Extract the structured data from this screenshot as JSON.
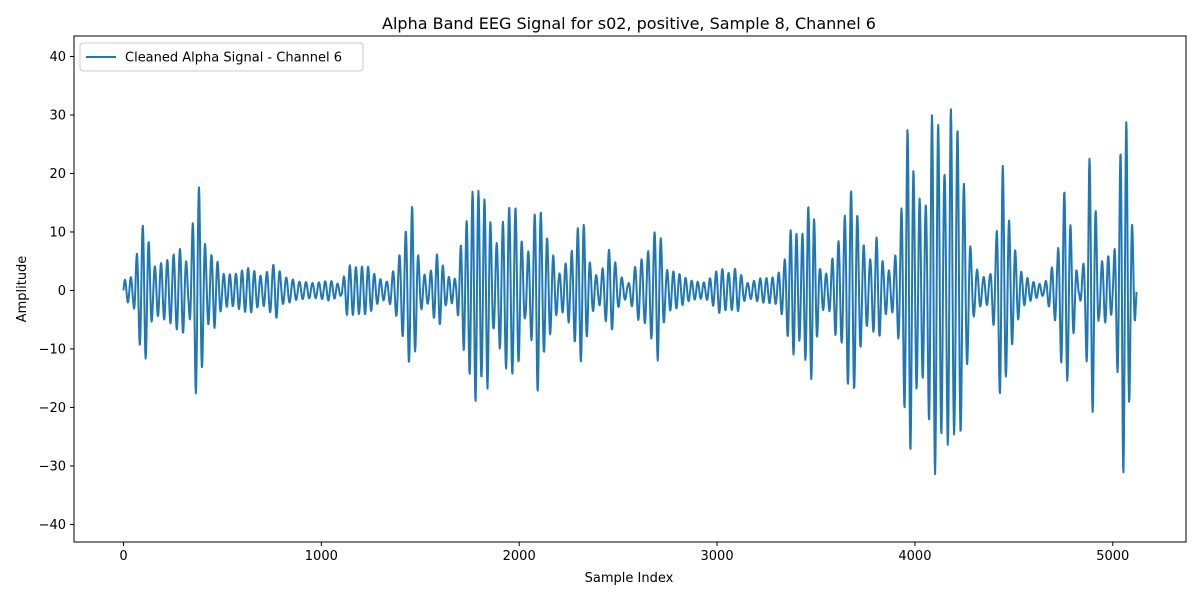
{
  "chart_data": {
    "type": "line",
    "title": "Alpha Band EEG Signal for s02, positive, Sample 8, Channel 6",
    "xlabel": "Sample Index",
    "ylabel": "Amplitude",
    "xlim": [
      -250,
      5370
    ],
    "ylim": [
      -43,
      43.5
    ],
    "xticks": [
      0,
      1000,
      2000,
      3000,
      4000,
      5000
    ],
    "yticks": [
      -40,
      -30,
      -20,
      -10,
      0,
      10,
      20,
      30,
      40
    ],
    "grid": false,
    "legend_position": "top-left",
    "colors": {
      "series": "#1f77b4"
    },
    "series": [
      {
        "name": "Cleaned Alpha Signal - Channel 6",
        "envelope": [
          [
            0,
            2
          ],
          [
            50,
            2.5
          ],
          [
            85,
            10
          ],
          [
            110,
            13
          ],
          [
            150,
            5
          ],
          [
            200,
            7
          ],
          [
            260,
            8
          ],
          [
            300,
            8
          ],
          [
            330,
            3
          ],
          [
            365,
            18
          ],
          [
            385,
            19
          ],
          [
            420,
            7
          ],
          [
            460,
            9
          ],
          [
            500,
            4
          ],
          [
            560,
            3
          ],
          [
            640,
            4
          ],
          [
            700,
            3
          ],
          [
            770,
            7
          ],
          [
            800,
            3
          ],
          [
            880,
            1.5
          ],
          [
            960,
            1.5
          ],
          [
            1040,
            2.5
          ],
          [
            1100,
            1
          ],
          [
            1130,
            4.5
          ],
          [
            1180,
            4
          ],
          [
            1240,
            5
          ],
          [
            1290,
            3
          ],
          [
            1330,
            2
          ],
          [
            1380,
            5
          ],
          [
            1410,
            8
          ],
          [
            1440,
            12
          ],
          [
            1460,
            15
          ],
          [
            1500,
            4
          ],
          [
            1540,
            3
          ],
          [
            1590,
            9.5
          ],
          [
            1630,
            3
          ],
          [
            1680,
            2
          ],
          [
            1710,
            9
          ],
          [
            1740,
            13
          ],
          [
            1780,
            23
          ],
          [
            1810,
            20
          ],
          [
            1840,
            24
          ],
          [
            1870,
            9
          ],
          [
            1910,
            13
          ],
          [
            1940,
            15
          ],
          [
            1990,
            14
          ],
          [
            2030,
            5
          ],
          [
            2070,
            12
          ],
          [
            2090,
            25
          ],
          [
            2120,
            16
          ],
          [
            2150,
            11
          ],
          [
            2200,
            3
          ],
          [
            2260,
            6
          ],
          [
            2320,
            15
          ],
          [
            2360,
            6
          ],
          [
            2400,
            3
          ],
          [
            2460,
            9
          ],
          [
            2500,
            3
          ],
          [
            2550,
            1
          ],
          [
            2600,
            6
          ],
          [
            2640,
            8
          ],
          [
            2700,
            16
          ],
          [
            2740,
            4
          ],
          [
            2800,
            3
          ],
          [
            2860,
            2
          ],
          [
            2940,
            2
          ],
          [
            3010,
            4.5
          ],
          [
            3060,
            3
          ],
          [
            3100,
            4
          ],
          [
            3150,
            1.5
          ],
          [
            3220,
            3
          ],
          [
            3300,
            2.5
          ],
          [
            3340,
            5
          ],
          [
            3380,
            12
          ],
          [
            3420,
            10
          ],
          [
            3440,
            14
          ],
          [
            3460,
            20
          ],
          [
            3480,
            22
          ],
          [
            3520,
            5
          ],
          [
            3560,
            3
          ],
          [
            3600,
            8
          ],
          [
            3630,
            9
          ],
          [
            3660,
            17
          ],
          [
            3690,
            21
          ],
          [
            3720,
            14
          ],
          [
            3770,
            7
          ],
          [
            3810,
            12
          ],
          [
            3840,
            5
          ],
          [
            3880,
            3
          ],
          [
            3920,
            9
          ],
          [
            3950,
            24
          ],
          [
            3970,
            38
          ],
          [
            4000,
            24
          ],
          [
            4060,
            20
          ],
          [
            4080,
            37
          ],
          [
            4100,
            37
          ],
          [
            4150,
            20
          ],
          [
            4180,
            32
          ],
          [
            4200,
            25
          ],
          [
            4220,
            32
          ],
          [
            4250,
            22
          ],
          [
            4290,
            7
          ],
          [
            4340,
            3
          ],
          [
            4380,
            3
          ],
          [
            4410,
            9
          ],
          [
            4440,
            23
          ],
          [
            4460,
            15
          ],
          [
            4500,
            9
          ],
          [
            4540,
            4
          ],
          [
            4600,
            2
          ],
          [
            4650,
            1
          ],
          [
            4720,
            6
          ],
          [
            4760,
            20
          ],
          [
            4800,
            10
          ],
          [
            4830,
            1
          ],
          [
            4860,
            9
          ],
          [
            4880,
            31
          ],
          [
            4900,
            26
          ],
          [
            4930,
            5
          ],
          [
            4980,
            6
          ],
          [
            5000,
            3
          ],
          [
            5030,
            18
          ],
          [
            5050,
            37
          ],
          [
            5070,
            36
          ],
          [
            5090,
            20
          ],
          [
            5110,
            9
          ],
          [
            5120,
            2
          ]
        ]
      }
    ]
  }
}
